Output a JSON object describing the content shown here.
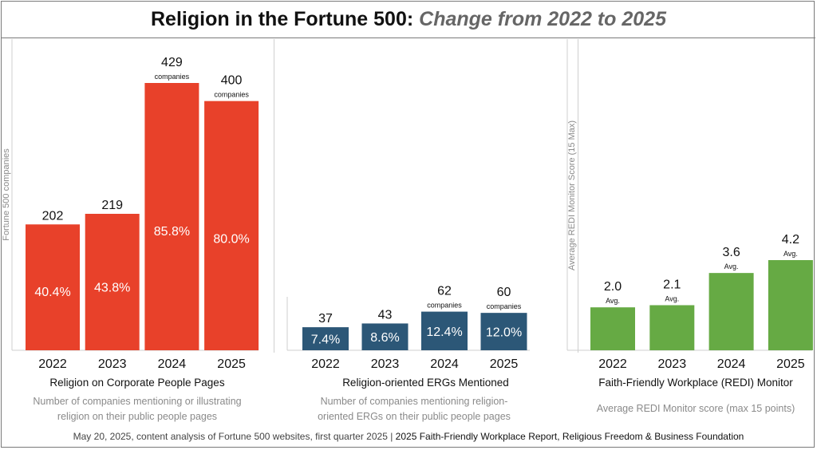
{
  "header": {
    "title_main": "Religion in the Fortune 500:",
    "title_sub": "Change from 2022 to 2025"
  },
  "colors": {
    "panel1": "#e8412a",
    "panel2": "#2c5777",
    "panel3": "#66aa44"
  },
  "chart_data": [
    {
      "type": "bar",
      "title": "Religion on Corporate People Pages",
      "subtitle": "Number of companies mentioning or illustrating religion on their public people pages",
      "ylabel": "Fortune 500 companies",
      "categories": [
        "2022",
        "2023",
        "2024",
        "2025"
      ],
      "values": [
        202,
        219,
        429,
        400
      ],
      "value_labels": [
        "202",
        "219",
        "429",
        "400"
      ],
      "percent_labels": [
        "40.4%",
        "43.8%",
        "85.8%",
        "80.0%"
      ],
      "unit_labels": [
        "",
        "",
        "companies",
        "companies"
      ],
      "ylim": [
        0,
        500
      ]
    },
    {
      "type": "bar",
      "title": "Religion-oriented ERGs Mentioned",
      "subtitle": "Number of companies mentioning religion-oriented ERGs on their public people pages",
      "categories": [
        "2022",
        "2023",
        "2024",
        "2025"
      ],
      "values": [
        37,
        43,
        62,
        60
      ],
      "value_labels": [
        "37",
        "43",
        "62",
        "60"
      ],
      "percent_labels": [
        "7.4%",
        "8.6%",
        "12.4%",
        "12.0%"
      ],
      "unit_labels": [
        "",
        "",
        "companies",
        "companies"
      ],
      "ylim": [
        0,
        500
      ]
    },
    {
      "type": "bar",
      "title": "Faith-Friendly Workplace (REDI) Monitor",
      "subtitle": "Average REDI Monitor score (max 15 points)",
      "ylabel": "Average REDI Monitor Score (15 Max)",
      "categories": [
        "2022",
        "2023",
        "2024",
        "2025"
      ],
      "values": [
        2.0,
        2.1,
        3.6,
        4.2
      ],
      "value_labels": [
        "2.0",
        "2.1",
        "3.6",
        "4.2"
      ],
      "unit_labels": [
        "Avg.",
        "Avg.",
        "Avg.",
        "Avg."
      ],
      "ylim": [
        0,
        15
      ]
    }
  ],
  "footer": {
    "source": "May 20, 2025, content analysis of Fortune 500 websites, first quarter 2025",
    "separator": " | ",
    "publication": "2025 Faith-Friendly Workplace Report, Religious Freedom & Business Foundation"
  }
}
